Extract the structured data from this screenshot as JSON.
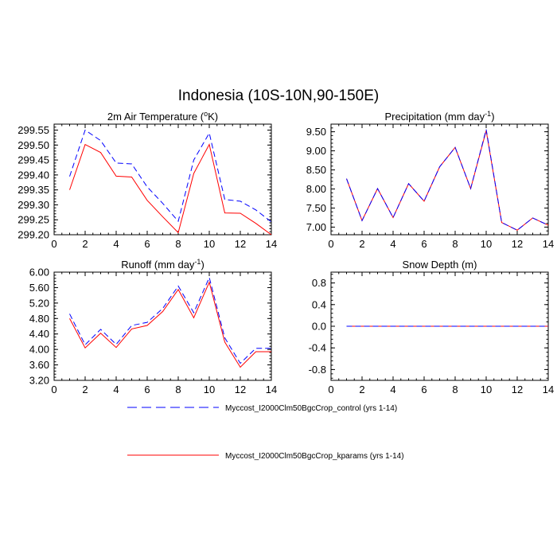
{
  "title": "Indonesia (10S-10N,90-150E)",
  "series_info": [
    {
      "name": "Myccost_I2000Clm50BgcCrop_control (yrs 1-14)",
      "color": "#0000ff",
      "dash": "dashed"
    },
    {
      "name": "Myccost_I2000Clm50BgcCrop_kparams (yrs 1-14)",
      "color": "#ff0000",
      "dash": "solid"
    }
  ],
  "chart_data": [
    {
      "type": "line",
      "title": "2m Air Temperature (°K)",
      "title_main": "2m Air Temperature (",
      "title_sup": "o",
      "title_rest": "K)",
      "xlim": [
        0,
        14
      ],
      "ylim": [
        299.2,
        299.57
      ],
      "xticks": [
        0,
        2,
        4,
        6,
        8,
        10,
        12,
        14
      ],
      "xtick_labels": [
        "0",
        "2",
        "4",
        "6",
        "8",
        "10",
        "12",
        "14"
      ],
      "yticks": [
        299.2,
        299.25,
        299.3,
        299.35,
        299.4,
        299.45,
        299.5,
        299.55
      ],
      "ytick_labels": [
        "299.20",
        "299.25",
        "299.30",
        "299.35",
        "299.40",
        "299.45",
        "299.50",
        "299.55"
      ],
      "x": [
        1,
        2,
        3,
        4,
        5,
        6,
        7,
        8,
        9,
        10,
        11,
        12,
        13,
        14
      ],
      "series": [
        {
          "name": "Myccost_I2000Clm50BgcCrop_control (yrs 1-14)",
          "values": [
            299.395,
            299.55,
            299.515,
            299.44,
            299.437,
            299.36,
            299.305,
            299.245,
            299.45,
            299.54,
            299.318,
            299.312,
            299.283,
            299.243
          ]
        },
        {
          "name": "Myccost_I2000Clm50BgcCrop_kparams (yrs 1-14)",
          "values": [
            299.35,
            299.502,
            299.475,
            299.396,
            299.393,
            299.315,
            299.26,
            299.207,
            299.405,
            299.502,
            299.273,
            299.272,
            299.238,
            299.2
          ]
        }
      ]
    },
    {
      "type": "line",
      "title": "Precipitation (mm day-1)",
      "title_main": "Precipitation (mm day",
      "title_sup": "-1",
      "title_rest": ")",
      "xlim": [
        0,
        14
      ],
      "ylim": [
        6.8,
        9.7
      ],
      "xticks": [
        0,
        2,
        4,
        6,
        8,
        10,
        12,
        14
      ],
      "xtick_labels": [
        "0",
        "2",
        "4",
        "6",
        "8",
        "10",
        "12",
        "14"
      ],
      "yticks": [
        7.0,
        7.5,
        8.0,
        8.5,
        9.0,
        9.5
      ],
      "ytick_labels": [
        "7.00",
        "7.50",
        "8.00",
        "8.50",
        "9.00",
        "9.50"
      ],
      "x": [
        1,
        2,
        3,
        4,
        5,
        6,
        7,
        8,
        9,
        10,
        11,
        12,
        13,
        14
      ],
      "series": [
        {
          "name": "Myccost_I2000Clm50BgcCrop_control (yrs 1-14)",
          "values": [
            8.27,
            7.17,
            8.01,
            7.25,
            8.14,
            7.68,
            8.58,
            9.09,
            8.01,
            9.56,
            7.12,
            6.92,
            7.24,
            7.05
          ]
        },
        {
          "name": "Myccost_I2000Clm50BgcCrop_kparams (yrs 1-14)",
          "values": [
            8.27,
            7.17,
            8.01,
            7.25,
            8.14,
            7.68,
            8.58,
            9.09,
            8.01,
            9.53,
            7.12,
            6.92,
            7.24,
            7.05
          ]
        }
      ]
    },
    {
      "type": "line",
      "title": "Runoff (mm day-1)",
      "title_main": "Runoff (mm day",
      "title_sup": "-1",
      "title_rest": ")",
      "xlim": [
        0,
        14
      ],
      "ylim": [
        3.2,
        6.0
      ],
      "xticks": [
        0,
        2,
        4,
        6,
        8,
        10,
        12,
        14
      ],
      "xtick_labels": [
        "0",
        "2",
        "4",
        "6",
        "8",
        "10",
        "12",
        "14"
      ],
      "yticks": [
        3.2,
        3.6,
        4.0,
        4.4,
        4.8,
        5.2,
        5.6,
        6.0
      ],
      "ytick_labels": [
        "3.20",
        "3.60",
        "4.00",
        "4.40",
        "4.80",
        "5.20",
        "5.60",
        "6.00"
      ],
      "x": [
        1,
        2,
        3,
        4,
        5,
        6,
        7,
        8,
        9,
        10,
        11,
        12,
        13,
        14
      ],
      "series": [
        {
          "name": "Myccost_I2000Clm50BgcCrop_control (yrs 1-14)",
          "values": [
            4.92,
            4.12,
            4.52,
            4.13,
            4.62,
            4.7,
            5.06,
            5.64,
            4.95,
            5.86,
            4.3,
            3.64,
            4.03,
            4.03
          ]
        },
        {
          "name": "Myccost_I2000Clm50BgcCrop_kparams (yrs 1-14)",
          "values": [
            4.8,
            4.04,
            4.42,
            4.05,
            4.53,
            4.62,
            4.98,
            5.55,
            4.82,
            5.74,
            4.19,
            3.54,
            3.94,
            3.94
          ]
        }
      ]
    },
    {
      "type": "line",
      "title": "Snow Depth (m)",
      "title_main": "Snow Depth (m)",
      "title_sup": "",
      "title_rest": "",
      "xlim": [
        0,
        14
      ],
      "ylim": [
        -1.0,
        1.0
      ],
      "xticks": [
        0,
        2,
        4,
        6,
        8,
        10,
        12,
        14
      ],
      "xtick_labels": [
        "0",
        "2",
        "4",
        "6",
        "8",
        "10",
        "12",
        "14"
      ],
      "yticks": [
        -0.8,
        -0.4,
        0.0,
        0.4,
        0.8
      ],
      "ytick_labels": [
        "-0.8",
        "-0.4",
        "0.0",
        "0.4",
        "0.8"
      ],
      "x": [
        1,
        2,
        3,
        4,
        5,
        6,
        7,
        8,
        9,
        10,
        11,
        12,
        13,
        14
      ],
      "series": [
        {
          "name": "Myccost_I2000Clm50BgcCrop_control (yrs 1-14)",
          "values": [
            0,
            0,
            0,
            0,
            0,
            0,
            0,
            0,
            0,
            0,
            0,
            0,
            0,
            0
          ]
        },
        {
          "name": "Myccost_I2000Clm50BgcCrop_kparams (yrs 1-14)",
          "values": [
            0,
            0,
            0,
            0,
            0,
            0,
            0,
            0,
            0,
            0,
            0,
            0,
            0,
            0
          ]
        }
      ]
    }
  ]
}
